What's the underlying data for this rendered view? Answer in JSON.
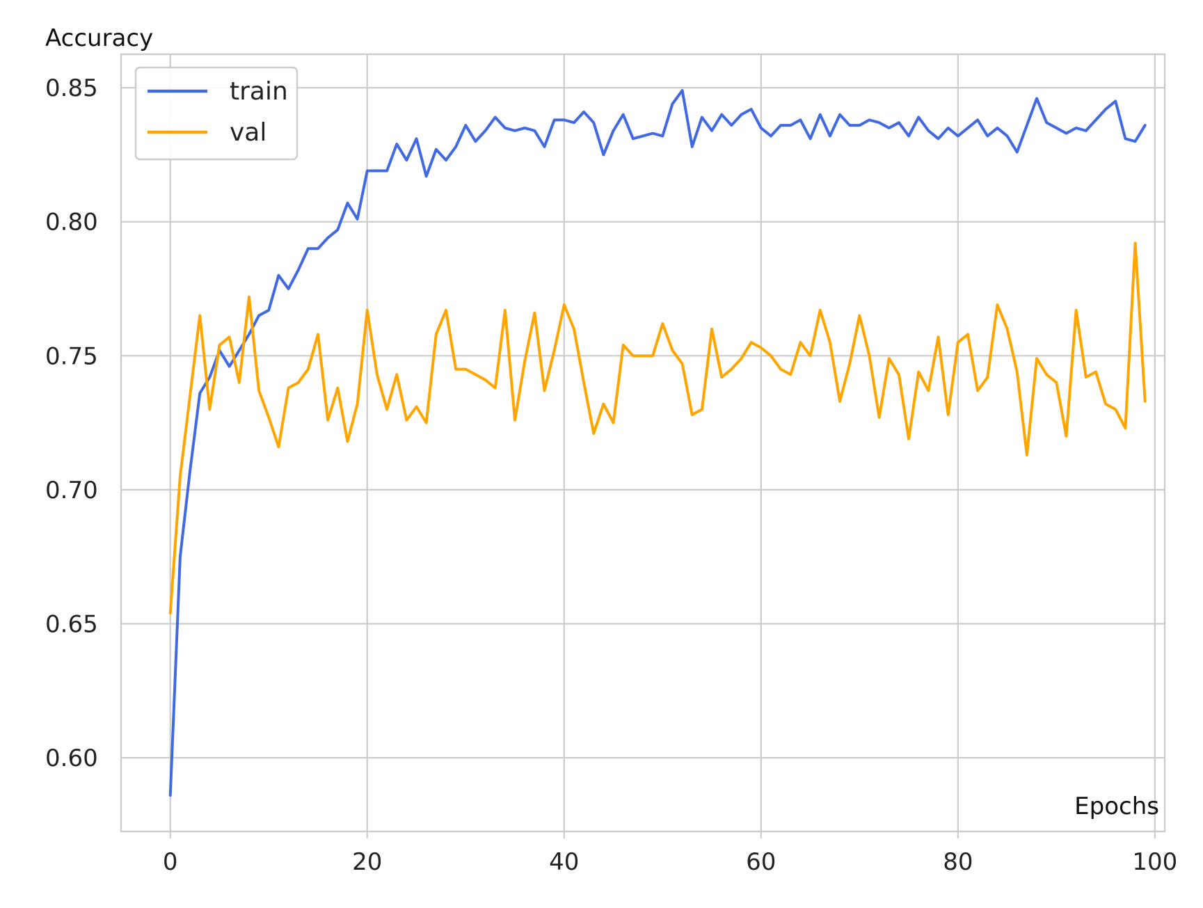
{
  "chart_data": {
    "type": "line",
    "title": "",
    "xlabel": "Epochs",
    "ylabel": "Accuracy",
    "xlim": [
      -5,
      101
    ],
    "ylim": [
      0.5725,
      0.8625
    ],
    "x_ticks": [
      0,
      20,
      40,
      60,
      80,
      100
    ],
    "x_tick_labels": [
      "0",
      "20",
      "40",
      "60",
      "80",
      "100"
    ],
    "y_ticks": [
      0.6,
      0.65,
      0.7,
      0.75,
      0.8,
      0.85
    ],
    "y_tick_labels": [
      "0.60",
      "0.65",
      "0.70",
      "0.75",
      "0.80",
      "0.85"
    ],
    "grid": true,
    "legend_position": "top-left",
    "x": [
      0,
      1,
      2,
      3,
      4,
      5,
      6,
      7,
      8,
      9,
      10,
      11,
      12,
      13,
      14,
      15,
      16,
      17,
      18,
      19,
      20,
      21,
      22,
      23,
      24,
      25,
      26,
      27,
      28,
      29,
      30,
      31,
      32,
      33,
      34,
      35,
      36,
      37,
      38,
      39,
      40,
      41,
      42,
      43,
      44,
      45,
      46,
      47,
      48,
      49,
      50,
      51,
      52,
      53,
      54,
      55,
      56,
      57,
      58,
      59,
      60,
      61,
      62,
      63,
      64,
      65,
      66,
      67,
      68,
      69,
      70,
      71,
      72,
      73,
      74,
      75,
      76,
      77,
      78,
      79,
      80,
      81,
      82,
      83,
      84,
      85,
      86,
      87,
      88,
      89,
      90,
      91,
      92,
      93,
      94,
      95,
      96,
      97,
      98,
      99
    ],
    "series": [
      {
        "name": "train",
        "color": "#4169e1",
        "values": [
          0.586,
          0.675,
          0.707,
          0.736,
          0.742,
          0.752,
          0.746,
          0.752,
          0.758,
          0.765,
          0.767,
          0.78,
          0.775,
          0.782,
          0.79,
          0.79,
          0.794,
          0.797,
          0.807,
          0.801,
          0.819,
          0.819,
          0.819,
          0.829,
          0.823,
          0.831,
          0.817,
          0.827,
          0.823,
          0.828,
          0.836,
          0.83,
          0.834,
          0.839,
          0.835,
          0.834,
          0.835,
          0.834,
          0.828,
          0.838,
          0.838,
          0.837,
          0.841,
          0.837,
          0.825,
          0.834,
          0.84,
          0.831,
          0.832,
          0.833,
          0.832,
          0.844,
          0.849,
          0.828,
          0.839,
          0.834,
          0.84,
          0.836,
          0.84,
          0.842,
          0.835,
          0.832,
          0.836,
          0.836,
          0.838,
          0.831,
          0.84,
          0.832,
          0.84,
          0.836,
          0.836,
          0.838,
          0.837,
          0.835,
          0.837,
          0.832,
          0.839,
          0.834,
          0.831,
          0.835,
          0.832,
          0.835,
          0.838,
          0.832,
          0.835,
          0.832,
          0.826,
          0.836,
          0.846,
          0.837,
          0.835,
          0.833,
          0.835,
          0.834,
          0.838,
          0.842,
          0.845,
          0.831,
          0.83,
          0.836
        ]
      },
      {
        "name": "val",
        "color": "#ffa500",
        "values": [
          0.654,
          0.705,
          0.735,
          0.765,
          0.73,
          0.754,
          0.757,
          0.74,
          0.772,
          0.737,
          0.727,
          0.716,
          0.738,
          0.74,
          0.745,
          0.758,
          0.726,
          0.738,
          0.718,
          0.732,
          0.767,
          0.743,
          0.73,
          0.743,
          0.726,
          0.731,
          0.725,
          0.758,
          0.767,
          0.745,
          0.745,
          0.743,
          0.741,
          0.738,
          0.767,
          0.726,
          0.748,
          0.766,
          0.737,
          0.752,
          0.769,
          0.76,
          0.74,
          0.721,
          0.732,
          0.725,
          0.754,
          0.75,
          0.75,
          0.75,
          0.762,
          0.752,
          0.747,
          0.728,
          0.73,
          0.76,
          0.742,
          0.745,
          0.749,
          0.755,
          0.753,
          0.75,
          0.745,
          0.743,
          0.755,
          0.75,
          0.767,
          0.755,
          0.733,
          0.747,
          0.765,
          0.75,
          0.727,
          0.749,
          0.743,
          0.719,
          0.744,
          0.737,
          0.757,
          0.728,
          0.755,
          0.758,
          0.737,
          0.742,
          0.769,
          0.76,
          0.744,
          0.713,
          0.749,
          0.743,
          0.74,
          0.72,
          0.767,
          0.742,
          0.744,
          0.732,
          0.73,
          0.723,
          0.792,
          0.733
        ]
      }
    ]
  }
}
